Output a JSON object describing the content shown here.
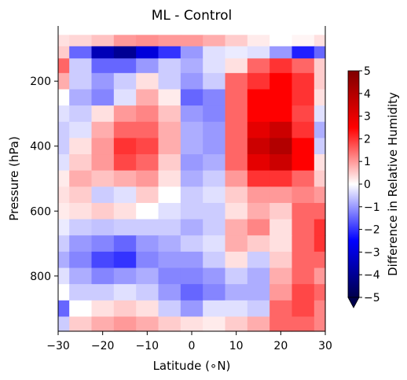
{
  "chart_data": {
    "type": "heatmap",
    "title": "ML - Control",
    "xlabel": "Latitude (∘N)",
    "ylabel": "Pressure (hPa)",
    "xlim": [
      -30,
      30
    ],
    "ylim": [
      970,
      30
    ],
    "y_axis_inverted": true,
    "x_ticks": [
      -30,
      -20,
      -10,
      0,
      10,
      20,
      30
    ],
    "x_tick_labels": [
      "−30",
      "−20",
      "−10",
      "0",
      "10",
      "20",
      "30"
    ],
    "y_ticks": [
      200,
      400,
      600,
      800
    ],
    "y_tick_labels": [
      "200",
      "400",
      "600",
      "800"
    ],
    "colormap": "seismic",
    "colorbar": {
      "label": "Difference in Relative Humidity",
      "range": [
        -5,
        5
      ],
      "extend": "min",
      "ticks": [
        5,
        4,
        3,
        2,
        1,
        0,
        -1,
        -2,
        -3,
        -4,
        -5
      ],
      "tick_labels": [
        "5",
        "4",
        "3",
        "2",
        "1",
        "0",
        "−1",
        "−2",
        "−3",
        "−4",
        "−5"
      ],
      "colors": {
        "min": "#00004c",
        "mid": "#ffffff",
        "max": "#7f0000",
        "neg": "#0000ff",
        "pos": "#ff0000"
      }
    },
    "grid": false,
    "latitudes": [
      -30,
      -25,
      -20,
      -15,
      -10,
      -5,
      0,
      5,
      10,
      15,
      20,
      25,
      30
    ],
    "pressure_levels": [
      40,
      75,
      110,
      150,
      200,
      250,
      300,
      350,
      400,
      450,
      500,
      550,
      600,
      650,
      700,
      750,
      800,
      850,
      900,
      950
    ],
    "values": [
      [
        0.0,
        0.0,
        0.0,
        0.0,
        0.0,
        0.0,
        0.0,
        0.0,
        0.0,
        0.0,
        0.0,
        0.0,
        0.0
      ],
      [
        0.3,
        0.4,
        0.6,
        1.0,
        1.1,
        1.0,
        1.0,
        0.8,
        0.5,
        0.2,
        0.0,
        0.1,
        0.3
      ],
      [
        0.5,
        -1.5,
        -3.5,
        -4.0,
        -3.0,
        -2.0,
        -1.0,
        -0.3,
        -0.2,
        -0.3,
        -1.0,
        -2.2,
        -1.5
      ],
      [
        1.5,
        -0.5,
        -1.5,
        -1.5,
        -1.0,
        -0.5,
        -0.8,
        -0.3,
        0.3,
        1.5,
        2.0,
        1.5,
        0.5
      ],
      [
        0.8,
        -0.5,
        -1.0,
        -0.5,
        0.3,
        -0.5,
        -1.0,
        -0.5,
        1.5,
        2.0,
        2.5,
        2.0,
        0.5
      ],
      [
        0.0,
        -0.8,
        -1.2,
        -0.3,
        0.8,
        0.2,
        -1.5,
        -1.2,
        1.5,
        2.5,
        2.5,
        2.0,
        0.3
      ],
      [
        -0.3,
        -0.5,
        0.3,
        1.0,
        1.2,
        0.6,
        -1.0,
        -1.2,
        1.5,
        2.5,
        2.5,
        1.8,
        -0.3
      ],
      [
        -0.5,
        -0.3,
        0.8,
        1.5,
        1.5,
        0.8,
        -0.8,
        -1.0,
        1.5,
        3.0,
        3.5,
        2.0,
        -0.8
      ],
      [
        -0.5,
        0.3,
        1.0,
        2.0,
        1.8,
        0.8,
        -0.8,
        -1.0,
        1.5,
        3.5,
        4.0,
        2.5,
        -0.5
      ],
      [
        -0.3,
        0.5,
        1.0,
        1.8,
        1.5,
        0.5,
        -1.0,
        -0.8,
        1.5,
        3.0,
        3.5,
        2.5,
        0.3
      ],
      [
        0.2,
        0.8,
        0.6,
        0.8,
        1.0,
        0.3,
        -0.8,
        -0.5,
        1.0,
        2.0,
        2.0,
        1.5,
        0.5
      ],
      [
        0.3,
        0.5,
        -0.5,
        -0.3,
        0.5,
        0.0,
        -0.5,
        -0.3,
        0.5,
        1.0,
        1.0,
        1.2,
        1.0
      ],
      [
        0.2,
        0.3,
        0.5,
        0.3,
        0.0,
        -0.3,
        -0.5,
        -0.5,
        0.3,
        0.8,
        0.5,
        1.5,
        1.5
      ],
      [
        -0.2,
        -0.5,
        -0.6,
        -0.5,
        -0.5,
        -0.5,
        -0.8,
        -0.5,
        0.8,
        1.2,
        0.3,
        1.5,
        2.0
      ],
      [
        -0.5,
        -1.0,
        -1.2,
        -1.5,
        -1.0,
        -0.8,
        -0.5,
        -0.3,
        0.8,
        0.5,
        0.3,
        1.5,
        2.0
      ],
      [
        -0.8,
        -1.2,
        -1.8,
        -2.0,
        -1.2,
        -1.0,
        -1.0,
        -0.5,
        0.3,
        -0.5,
        0.5,
        1.5,
        1.5
      ],
      [
        -0.3,
        -0.8,
        -1.2,
        -1.0,
        -0.8,
        -1.2,
        -1.2,
        -1.0,
        -0.5,
        -0.8,
        0.8,
        1.5,
        1.0
      ],
      [
        0.0,
        -0.5,
        -0.5,
        -0.3,
        -0.5,
        -1.0,
        -1.5,
        -1.2,
        -0.8,
        -0.8,
        1.0,
        1.8,
        1.5
      ],
      [
        -1.5,
        0.0,
        0.3,
        0.5,
        0.3,
        -0.5,
        -1.0,
        -0.3,
        -0.3,
        -0.5,
        1.5,
        1.8,
        1.2
      ],
      [
        -0.5,
        0.5,
        0.8,
        1.0,
        0.8,
        0.5,
        0.3,
        0.2,
        0.5,
        0.8,
        1.5,
        1.5,
        1.2
      ]
    ]
  }
}
